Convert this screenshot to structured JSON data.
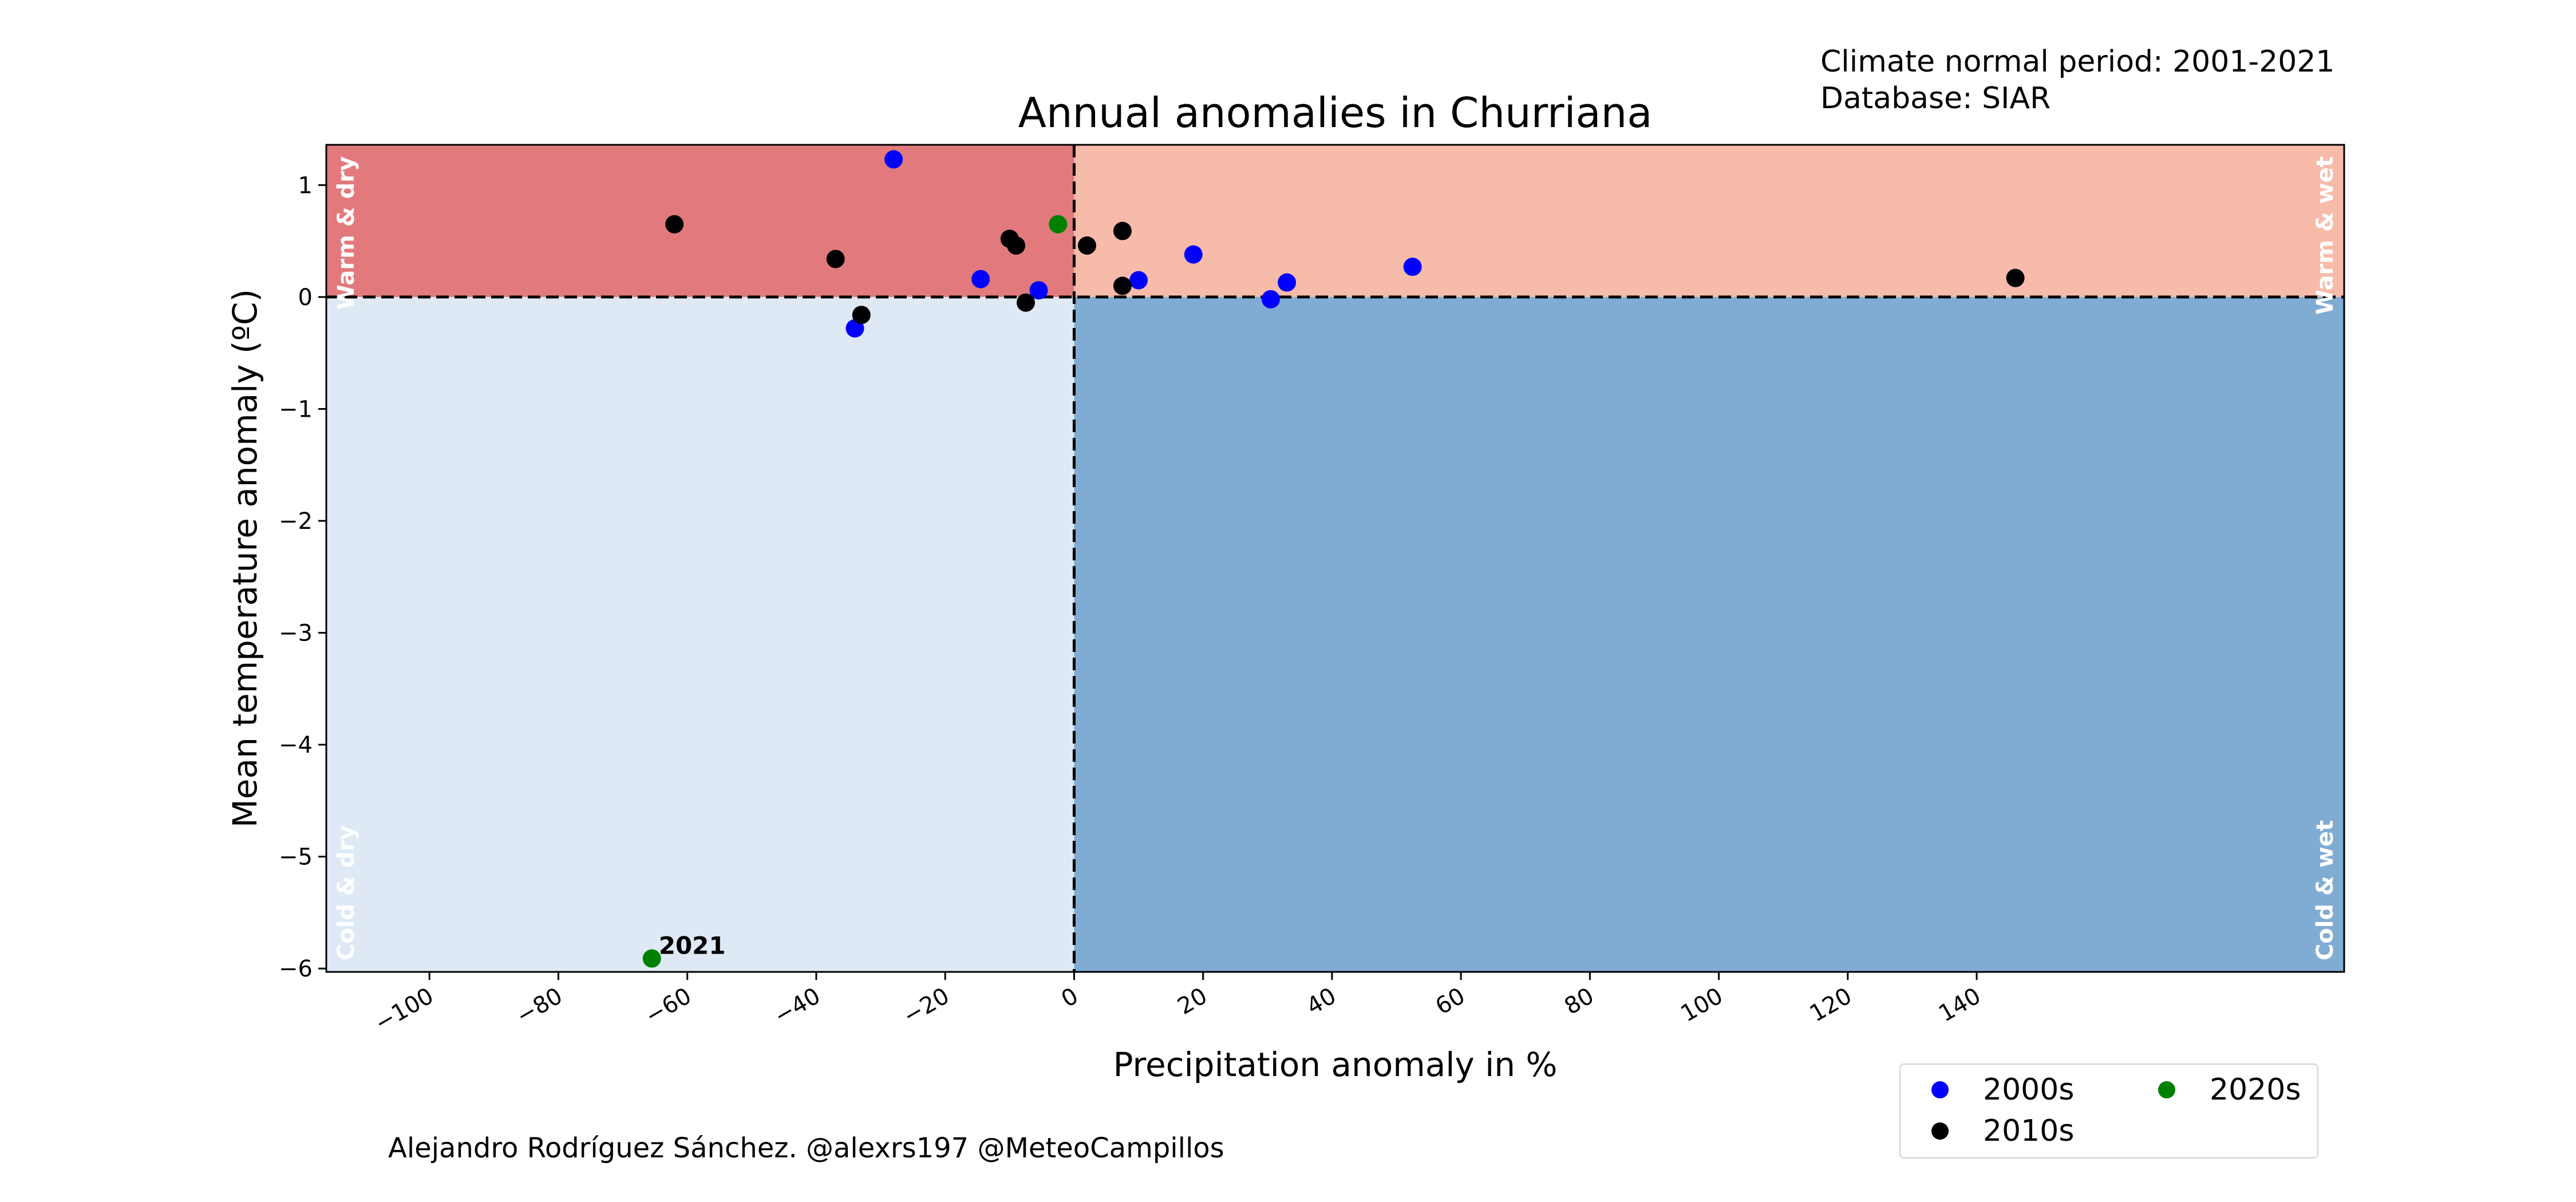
{
  "meta": {
    "climate_normal": "Climate normal period: 2001-2021",
    "database": "Database: SIAR"
  },
  "credit": "Alejandro Rodríguez Sánchez. @alexrs197 @MeteoCampillos",
  "colors": {
    "warm_dry": "#e27a7d",
    "warm_wet": "#f7bbaa",
    "cold_dry": "#dee9f5",
    "cold_wet": "#80acd4",
    "2000s": "#0000ff",
    "2010s": "#000000",
    "2020s": "#008000"
  },
  "chart_data": {
    "type": "scatter",
    "title": "Annual anomalies in Churriana",
    "xlabel": "Precipitation anomaly in %",
    "ylabel": "Mean temperature anomaly (ºC)",
    "xlim": [
      -116,
      197
    ],
    "ylim": [
      -6.03,
      1.36
    ],
    "xticks": [
      -100,
      -80,
      -60,
      -40,
      -20,
      0,
      20,
      40,
      60,
      80,
      100,
      120,
      140
    ],
    "xtick_labels": [
      "−100",
      "−80",
      "−60",
      "−40",
      "−20",
      "0",
      "20",
      "40",
      "60",
      "80",
      "100",
      "120",
      "140"
    ],
    "yticks": [
      1,
      0,
      -1,
      -2,
      -3,
      -4,
      -5,
      -6
    ],
    "ytick_labels": [
      "1",
      "0",
      "−1",
      "−2",
      "−3",
      "−4",
      "−5",
      "−6"
    ],
    "grid": false,
    "quadrant_labels": {
      "warm_dry": "Warm & dry",
      "warm_wet": "Warm & wet",
      "cold_dry": "Cold & dry",
      "cold_wet": "Cold & wet"
    },
    "annotations": [
      {
        "text": "2021",
        "x": -65.5,
        "y": -5.91
      }
    ],
    "legend": {
      "position": "lower-right, outside axes"
    },
    "series": [
      {
        "name": "2000s",
        "points": [
          [
            -28,
            1.23
          ],
          [
            -14.5,
            0.16
          ],
          [
            -5.5,
            0.06
          ],
          [
            -34,
            -0.28
          ],
          [
            10,
            0.15
          ],
          [
            18.5,
            0.38
          ],
          [
            30.5,
            -0.02
          ],
          [
            33,
            0.13
          ],
          [
            52.5,
            0.27
          ]
        ]
      },
      {
        "name": "2010s",
        "points": [
          [
            -62,
            0.65
          ],
          [
            -37,
            0.34
          ],
          [
            -33,
            -0.16
          ],
          [
            -10,
            0.52
          ],
          [
            -9,
            0.46
          ],
          [
            -7.5,
            -0.05
          ],
          [
            2,
            0.46
          ],
          [
            7.5,
            0.59
          ],
          [
            7.5,
            0.1
          ],
          [
            146,
            0.17
          ]
        ]
      },
      {
        "name": "2020s",
        "points": [
          [
            -2.5,
            0.65
          ],
          [
            -65.5,
            -5.91
          ]
        ]
      }
    ]
  }
}
